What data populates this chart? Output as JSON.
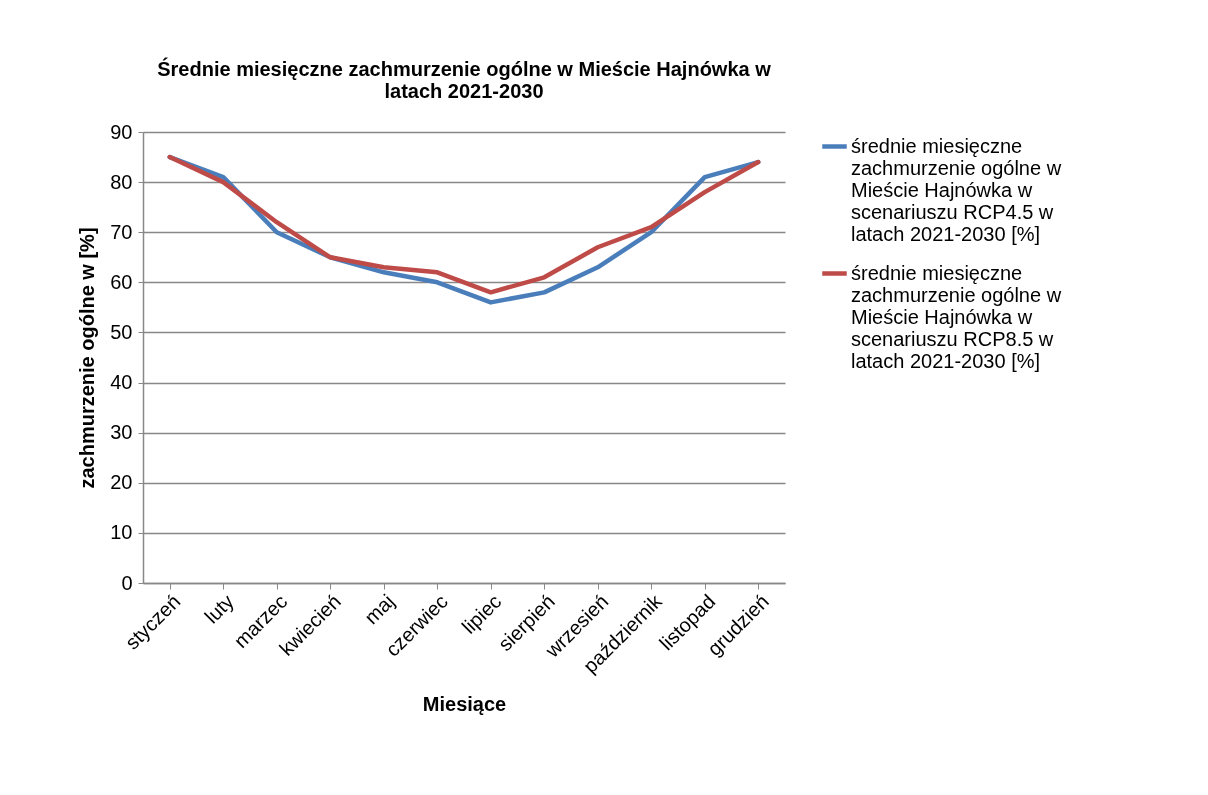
{
  "chart_data": {
    "type": "line",
    "title": "Średnie miesięczne zachmurzenie ogólne w Mieście Hajnówka w latach 2021-2030",
    "xlabel": "Miesiące",
    "ylabel": "zachmurzenie ogólne w [%]",
    "categories": [
      "styczeń",
      "luty",
      "marzec",
      "kwiecień",
      "maj",
      "czerwiec",
      "lipiec",
      "sierpień",
      "wrzesień",
      "październik",
      "listopad",
      "grudzień"
    ],
    "series": [
      {
        "name": "średnie miesięczne zachmurzenie ogólne w Mieście Hajnówka w scenariuszu RCP4.5 w latach 2021-2030 [%]",
        "color": "#4a7ebb",
        "values": [
          85,
          81,
          70,
          65,
          62,
          60,
          56,
          58,
          63,
          70,
          81,
          84
        ]
      },
      {
        "name": "średnie miesięczne zachmurzenie ogólne w Mieście Hajnówka w scenariuszu RCP8.5 w latach 2021-2030 [%]",
        "color": "#be4b48",
        "values": [
          85,
          80,
          72,
          65,
          63,
          62,
          58,
          61,
          67,
          71,
          78,
          84
        ]
      }
    ],
    "ylim": [
      0,
      90
    ],
    "yticks": [
      0,
      10,
      20,
      30,
      40,
      50,
      60,
      70,
      80,
      90
    ],
    "grid": "y",
    "legend": "right",
    "marker": "none",
    "line_style": "solid"
  }
}
